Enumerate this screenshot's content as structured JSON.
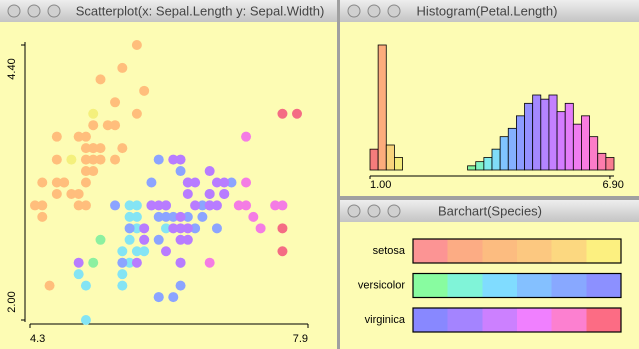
{
  "chart_data": [
    {
      "type": "scatter",
      "title": "Scatterplot(x: Sepal.Length y: Sepal.Width)",
      "xlim": [
        4.3,
        7.9
      ],
      "ylim": [
        2.0,
        4.4
      ],
      "xticks": [
        4.3,
        7.9
      ],
      "yticks": [
        {
          "value": 2.0,
          "label": "2.00"
        },
        {
          "value": 4.4,
          "label": "4.40"
        }
      ],
      "series": [
        {
          "color": "#ffbe7c",
          "x": [
            5.1,
            4.9,
            4.7,
            4.6,
            5.0,
            5.4,
            4.6,
            5.0,
            4.4,
            4.9,
            5.4,
            4.3,
            5.8,
            5.7,
            5.7,
            5.1,
            5.4,
            5.1,
            4.6,
            5.1,
            5.0,
            5.2,
            5.2,
            4.7,
            4.8,
            5.2,
            5.5,
            5.0,
            5.5,
            4.9,
            4.4,
            5.1,
            4.5,
            4.4,
            5.0,
            4.6,
            5.3,
            5.0
          ],
          "values": [
            3.5,
            3.0,
            3.2,
            3.1,
            3.6,
            3.9,
            3.4,
            3.4,
            2.9,
            3.1,
            3.7,
            3.0,
            4.0,
            4.4,
            3.8,
            3.7,
            3.4,
            3.3,
            3.6,
            3.5,
            3.0,
            3.5,
            3.4,
            3.2,
            3.1,
            4.1,
            4.2,
            3.2,
            3.5,
            3.6,
            3.0,
            3.4,
            2.3,
            3.2,
            3.5,
            3.2,
            3.7,
            3.3
          ]
        },
        {
          "color": "#f4f07c",
          "x": [
            4.8,
            5.1
          ],
          "values": [
            3.4,
            3.8
          ]
        },
        {
          "color": "#8cf0a0",
          "x": [
            5.1,
            5.2
          ],
          "values": [
            2.5,
            2.7
          ]
        },
        {
          "color": "#84e4f4",
          "x": [
            5.0,
            5.0,
            5.6,
            5.8,
            5.6,
            5.7,
            5.5,
            5.5,
            5.6,
            5.7,
            5.7,
            5.7,
            5.6,
            5.8,
            5.5,
            4.9,
            6.0,
            5.9,
            6.1
          ],
          "values": [
            2.0,
            2.3,
            2.9,
            2.7,
            2.5,
            2.6,
            2.4,
            2.6,
            2.7,
            3.0,
            2.9,
            2.8,
            3.0,
            2.6,
            2.3,
            2.4,
            2.2,
            3.0,
            2.8
          ]
        },
        {
          "color": "#8ca4ff",
          "x": [
            7.0,
            6.4,
            6.9,
            6.5,
            6.3,
            6.6,
            6.1,
            6.7,
            6.2,
            5.9,
            6.3,
            6.4,
            6.6,
            6.7,
            6.0,
            6.0,
            5.4,
            6.0,
            6.3,
            6.1,
            6.2,
            5.5,
            6.8,
            5.6,
            6.0
          ],
          "values": [
            3.2,
            3.2,
            3.1,
            2.8,
            3.3,
            2.9,
            2.9,
            3.1,
            2.2,
            3.2,
            2.5,
            2.9,
            3.0,
            3.0,
            2.9,
            2.7,
            3.0,
            3.4,
            2.3,
            3.0,
            2.9,
            2.5,
            2.8,
            2.8,
            2.2
          ]
        },
        {
          "color": "#b87cff",
          "x": [
            5.8,
            6.3,
            6.5,
            4.9,
            6.5,
            6.4,
            6.8,
            5.7,
            5.8,
            6.4,
            6.0,
            6.2,
            6.1,
            6.3,
            6.1,
            6.4,
            6.9,
            6.7,
            6.3,
            6.2,
            5.9,
            6.3,
            6.9,
            6.8,
            6.7,
            6.4,
            6.3,
            6.7
          ],
          "values": [
            2.7,
            2.9,
            3.0,
            2.5,
            3.2,
            2.7,
            3.0,
            2.5,
            2.8,
            3.2,
            3.0,
            2.8,
            3.0,
            2.8,
            2.6,
            2.8,
            3.1,
            3.1,
            2.7,
            3.4,
            3.0,
            2.5,
            3.2,
            3.2,
            3.3,
            3.1,
            3.4,
            3.0
          ]
        },
        {
          "color": "#f47ce4",
          "x": [
            7.1,
            7.3,
            6.7,
            7.2,
            7.2,
            7.2,
            7.4,
            7.7,
            7.6
          ],
          "values": [
            3.0,
            2.9,
            2.5,
            3.6,
            3.2,
            3.0,
            2.8,
            3.0,
            3.0
          ]
        },
        {
          "color": "#f46c84",
          "x": [
            7.7,
            7.9,
            7.7,
            7.7
          ],
          "values": [
            3.8,
            3.8,
            2.6,
            2.8
          ]
        }
      ]
    },
    {
      "type": "histogram",
      "title": "Histogram(Petal.Length)",
      "bins": [
        1.0,
        1.2,
        1.4,
        1.6,
        1.8,
        2.0,
        2.2,
        2.4,
        2.6,
        2.8,
        3.0,
        3.2,
        3.4,
        3.6,
        3.8,
        4.0,
        4.2,
        4.4,
        4.6,
        4.8,
        5.0,
        5.2,
        5.4,
        5.6,
        5.8,
        6.0,
        6.2,
        6.4,
        6.6,
        6.8,
        7.0
      ],
      "values": [
        5,
        30,
        6,
        3,
        0,
        0,
        0,
        0,
        0,
        0,
        0,
        0,
        1,
        2,
        3,
        5,
        8,
        10,
        13,
        16,
        18,
        17,
        18,
        14,
        16,
        11,
        13,
        8,
        4,
        3
      ],
      "colors": [
        "#f47c7c",
        "#fcac7c",
        "#f8d47c",
        "#f4ec7c",
        "#e4f47c",
        "#ccf47c",
        "#b4f47c",
        "#9cf47c",
        "#8cf48c",
        "#84f4a4",
        "#80f4bc",
        "#80f0d4",
        "#84f4a0",
        "#80f4c4",
        "#80ecec",
        "#80dcf8",
        "#80c4ff",
        "#84b0ff",
        "#8c9cff",
        "#9490ff",
        "#a488ff",
        "#b484ff",
        "#c480ff",
        "#d47cff",
        "#e47cf8",
        "#f07cf0",
        "#f87ce0",
        "#fc7cc8",
        "#fc7cac",
        "#f87c90"
      ],
      "xlim": [
        1.0,
        7.0
      ],
      "ylim": [
        0,
        30
      ],
      "xticks": [
        {
          "value": 1.0,
          "label": "1.00"
        },
        {
          "value": 6.9,
          "label": "6.90"
        }
      ]
    },
    {
      "type": "hbar",
      "title": "Barchart(Species)",
      "categories": [
        "setosa",
        "versicolor",
        "virginica"
      ],
      "values": [
        50,
        50,
        50
      ],
      "xlim": [
        0,
        50
      ],
      "colors": [
        [
          "#fc9494",
          "#fcac84",
          "#fcbc80",
          "#fcc880",
          "#fcd880",
          "#fcf080"
        ],
        [
          "#88fca0",
          "#80f4d8",
          "#80dcff",
          "#84c0ff",
          "#88a8ff",
          "#8c90ff"
        ],
        [
          "#8888ff",
          "#a484ff",
          "#cc80ff",
          "#f080ff",
          "#fc80d0",
          "#fc6c84"
        ]
      ]
    }
  ]
}
